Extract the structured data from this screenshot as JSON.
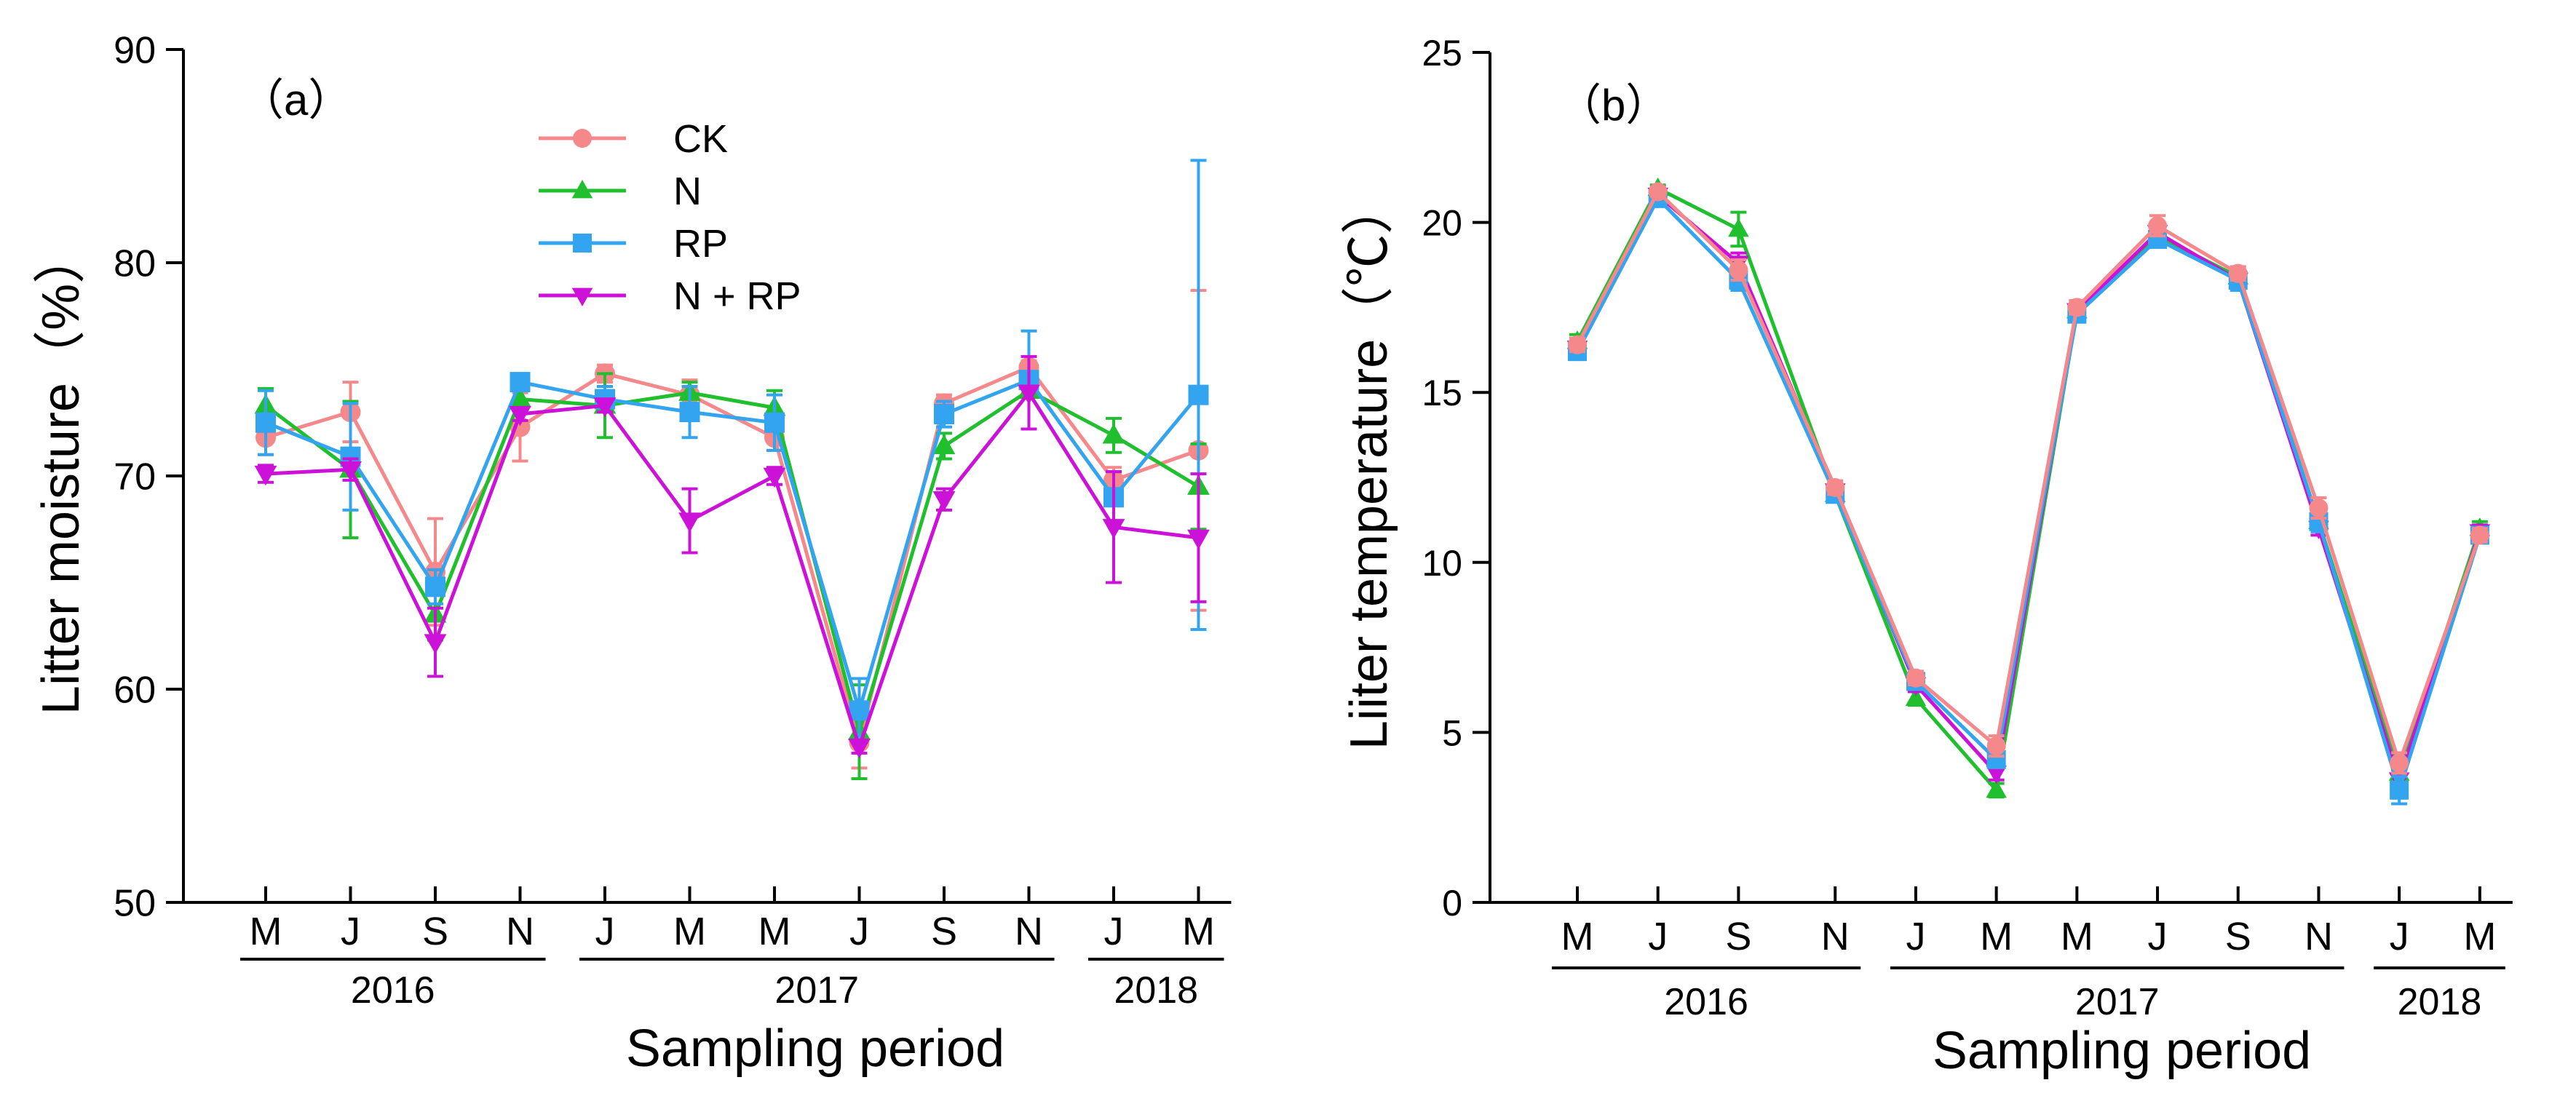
{
  "colors": {
    "CK": "#F4888A",
    "N": "#1FBF2E",
    "RP": "#33A4F0",
    "N + RP": "#CC11D8"
  },
  "chart_data": [
    {
      "type": "line",
      "panel_label": "（a）",
      "ylabel": "Litter moisture（%）",
      "xlabel": "Sampling period",
      "ylim": [
        50,
        90
      ],
      "yticks": [
        50,
        60,
        70,
        80,
        90
      ],
      "categories": [
        "M",
        "J",
        "S",
        "N",
        "J",
        "M",
        "M",
        "J",
        "S",
        "N",
        "J",
        "M"
      ],
      "x_index": [
        0,
        1,
        2,
        3,
        4,
        5,
        6,
        7,
        8,
        9,
        10,
        11
      ],
      "year_groups": [
        {
          "label": "2016",
          "from": 0,
          "to": 3
        },
        {
          "label": "2017",
          "from": 4,
          "to": 9
        },
        {
          "label": "2018",
          "from": 10,
          "to": 11
        }
      ],
      "legend": [
        "CK",
        "N",
        "RP",
        "N + RP"
      ],
      "series": [
        {
          "name": "CK",
          "marker": "circle",
          "values": [
            71.8,
            73.0,
            65.5,
            72.3,
            74.8,
            73.8,
            71.8,
            57.5,
            73.4,
            75.1,
            69.8,
            71.2
          ],
          "errors": [
            0.8,
            1.4,
            2.5,
            1.6,
            0.4,
            0.7,
            0.6,
            1.2,
            0.4,
            0.3,
            0.6,
            7.5
          ]
        },
        {
          "name": "N",
          "marker": "triangle-up",
          "values": [
            73.3,
            70.3,
            63.5,
            73.6,
            73.3,
            73.9,
            73.2,
            58.0,
            71.4,
            74.0,
            71.9,
            69.5
          ],
          "errors": [
            0.8,
            3.2,
            1.2,
            0.5,
            1.5,
            0.5,
            0.8,
            2.2,
            0.6,
            0.3,
            0.8,
            2.0
          ]
        },
        {
          "name": "RP",
          "marker": "square",
          "values": [
            72.5,
            70.9,
            64.8,
            74.4,
            73.6,
            73.0,
            72.5,
            59.0,
            72.9,
            74.5,
            69.0,
            73.8
          ],
          "errors": [
            1.5,
            2.5,
            0.8,
            0.3,
            0.6,
            1.2,
            1.3,
            1.5,
            0.6,
            2.3,
            1.2,
            11.0
          ]
        },
        {
          "name": "N + RP",
          "marker": "triangle-down",
          "values": [
            70.1,
            70.3,
            62.2,
            72.9,
            73.3,
            67.9,
            70.0,
            57.3,
            68.9,
            73.9,
            67.6,
            67.1
          ],
          "errors": [
            0.4,
            0.5,
            1.6,
            0.3,
            0.3,
            1.5,
            0.4,
            0.3,
            0.5,
            1.7,
            2.6,
            3.0
          ]
        }
      ]
    },
    {
      "type": "line",
      "panel_label": "（b）",
      "ylabel": "Liiter temperature（℃）",
      "xlabel": "Sampling period",
      "ylim": [
        0,
        25
      ],
      "yticks": [
        0,
        5,
        10,
        15,
        20,
        25
      ],
      "categories": [
        "M",
        "J",
        "S",
        "N",
        "J",
        "M",
        "M",
        "J",
        "S",
        "N",
        "J",
        "M"
      ],
      "x_index": [
        0,
        1,
        2,
        3.2,
        4.2,
        5.2,
        6.2,
        7.2,
        8.2,
        9.2,
        10.2,
        11.2
      ],
      "year_groups": [
        {
          "label": "2016",
          "from": 0,
          "to": 3.2
        },
        {
          "label": "2017",
          "from": 4.2,
          "to": 9.2
        },
        {
          "label": "2018",
          "from": 10.2,
          "to": 11.2
        }
      ],
      "series": [
        {
          "name": "N",
          "marker": "triangle-up",
          "values": [
            16.5,
            21.0,
            19.8,
            12.0,
            6.0,
            3.3,
            17.4,
            19.6,
            18.4,
            11.2,
            3.8,
            11.0
          ],
          "errors": [
            0.2,
            0.1,
            0.5,
            0.2,
            0.2,
            0.2,
            0.2,
            0.2,
            0.2,
            0.2,
            0.3,
            0.2
          ]
        },
        {
          "name": "N + RP",
          "marker": "triangle-down",
          "values": [
            16.3,
            20.8,
            18.8,
            12.1,
            6.4,
            3.8,
            17.4,
            19.7,
            18.3,
            11.0,
            3.6,
            10.9
          ],
          "errors": [
            0.2,
            0.1,
            0.3,
            0.2,
            0.2,
            0.2,
            0.2,
            0.2,
            0.2,
            0.2,
            0.3,
            0.2
          ]
        },
        {
          "name": "RP",
          "marker": "square",
          "values": [
            16.2,
            20.7,
            18.3,
            12.0,
            6.5,
            4.2,
            17.3,
            19.5,
            18.3,
            11.2,
            3.3,
            10.8
          ],
          "errors": [
            0.2,
            0.1,
            0.3,
            0.2,
            0.2,
            0.2,
            0.2,
            0.2,
            0.3,
            0.3,
            0.4,
            0.2
          ]
        },
        {
          "name": "CK",
          "marker": "circle",
          "values": [
            16.4,
            20.9,
            18.6,
            12.2,
            6.6,
            4.6,
            17.5,
            19.9,
            18.5,
            11.6,
            4.1,
            10.8
          ],
          "errors": [
            0.2,
            0.1,
            0.3,
            0.2,
            0.2,
            0.3,
            0.2,
            0.3,
            0.2,
            0.3,
            0.3,
            0.2
          ]
        }
      ]
    }
  ]
}
